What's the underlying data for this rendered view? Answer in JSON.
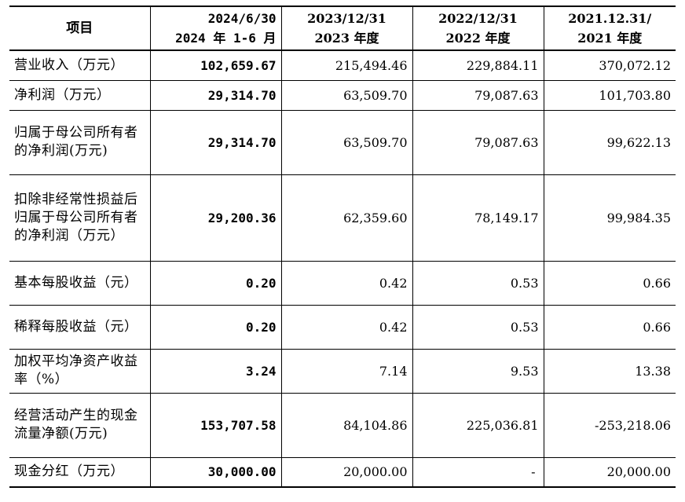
{
  "table": {
    "headers": [
      {
        "lines": [
          "项目"
        ]
      },
      {
        "lines": [
          "2024/6/30",
          "2024 年 1-6 月"
        ]
      },
      {
        "lines": [
          "2023/12/31",
          "2023 年度"
        ]
      },
      {
        "lines": [
          "2022/12/31",
          "2022 年度"
        ]
      },
      {
        "lines": [
          "2021.12.31/",
          "2021 年度"
        ]
      }
    ],
    "rows": [
      {
        "label": "营业收入（万元）",
        "values": [
          "102,659.67",
          "215,494.46",
          "229,884.11",
          "370,072.12"
        ]
      },
      {
        "label": "净利润（万元）",
        "values": [
          "29,314.70",
          "63,509.70",
          "79,087.63",
          "101,703.80"
        ]
      },
      {
        "label": "归属于母公司所有者的净利润(万元)",
        "values": [
          "29,314.70",
          "63,509.70",
          "79,087.63",
          "99,622.13"
        ]
      },
      {
        "label": "扣除非经常性损益后归属于母公司所有者的净利润（万元）",
        "values": [
          "29,200.36",
          "62,359.60",
          "78,149.17",
          "99,984.35"
        ]
      },
      {
        "label": "基本每股收益（元）",
        "values": [
          "0.20",
          "0.42",
          "0.53",
          "0.66"
        ]
      },
      {
        "label": "稀释每股收益（元）",
        "values": [
          "0.20",
          "0.42",
          "0.53",
          "0.66"
        ]
      },
      {
        "label": "加权平均净资产收益率（%）",
        "values": [
          "3.24",
          "7.14",
          "9.53",
          "13.38"
        ]
      },
      {
        "label": "经营活动产生的现金流量净额(万元)",
        "values": [
          "153,707.58",
          "84,104.86",
          "225,036.81",
          "-253,218.06"
        ]
      },
      {
        "label": "现金分红（万元）",
        "values": [
          "30,000.00",
          "20,000.00",
          "-",
          "20,000.00"
        ]
      }
    ]
  }
}
